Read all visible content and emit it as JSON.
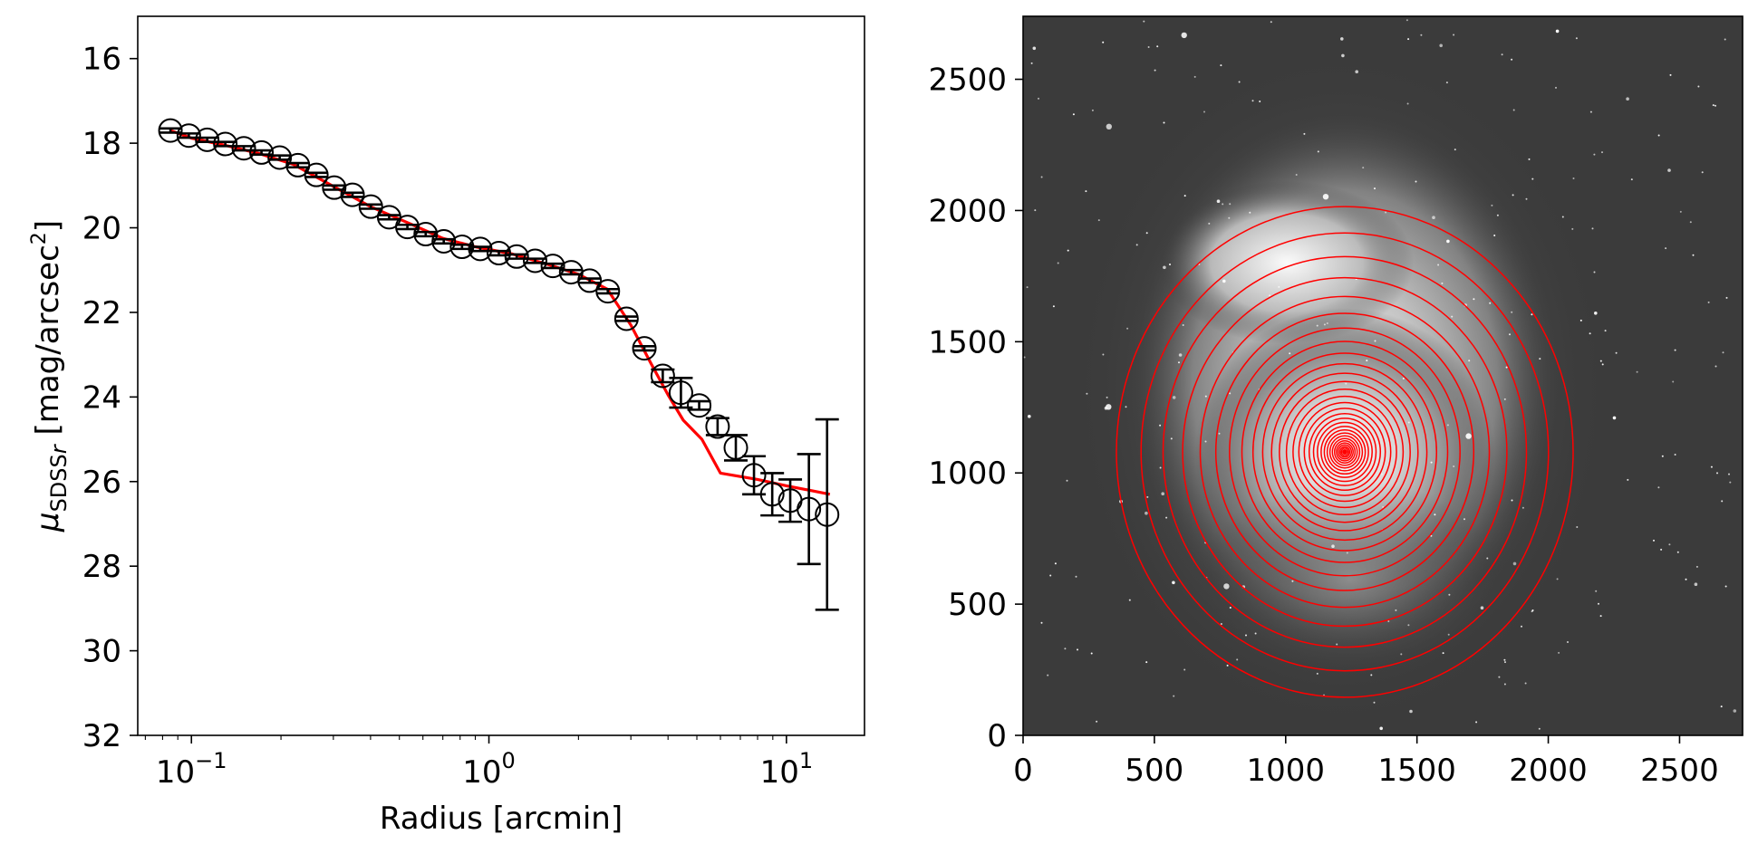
{
  "chart_data": [
    {
      "type": "scatter",
      "xlabel": "Radius [arcmin]",
      "ylabel_main": "μ",
      "ylabel_sub": "SDSS",
      "ylabel_sub_italic": "r",
      "ylabel_unit": " [mag/arcsec",
      "ylabel_unit_sup": "2",
      "ylabel_close": "]",
      "x_scale": "log",
      "xlim": [
        0.066,
        18.3
      ],
      "ylim": [
        32,
        15
      ],
      "y_inverted": true,
      "x_ticks": [
        {
          "value": 0.1,
          "base": "10",
          "exp": "−1"
        },
        {
          "value": 1,
          "base": "10",
          "exp": "0"
        },
        {
          "value": 10,
          "base": "10",
          "exp": "1"
        }
      ],
      "y_ticks": [
        {
          "value": 16,
          "label": "16"
        },
        {
          "value": 18,
          "label": "18"
        },
        {
          "value": 20,
          "label": "20"
        },
        {
          "value": 22,
          "label": "22"
        },
        {
          "value": 24,
          "label": "24"
        },
        {
          "value": 26,
          "label": "26"
        },
        {
          "value": 28,
          "label": "28"
        },
        {
          "value": 30,
          "label": "30"
        },
        {
          "value": 32,
          "label": "32"
        }
      ],
      "series": [
        {
          "marker": "open-circle",
          "color": "#000000",
          "x": [
            0.085,
            0.098,
            0.113,
            0.13,
            0.15,
            0.172,
            0.198,
            0.228,
            0.263,
            0.302,
            0.348,
            0.401,
            0.462,
            0.532,
            0.613,
            0.705,
            0.812,
            0.935,
            1.08,
            1.24,
            1.43,
            1.64,
            1.89,
            2.18,
            2.51,
            2.9,
            3.33,
            3.84,
            4.42,
            5.09,
            5.87,
            6.76,
            7.78,
            8.96,
            10.3,
            11.9,
            13.7
          ],
          "y": [
            17.7,
            17.82,
            17.92,
            18.02,
            18.12,
            18.22,
            18.34,
            18.52,
            18.75,
            19.05,
            19.22,
            19.5,
            19.75,
            19.98,
            20.15,
            20.32,
            20.45,
            20.5,
            20.6,
            20.68,
            20.78,
            20.9,
            21.05,
            21.25,
            21.5,
            22.15,
            22.85,
            23.5,
            23.9,
            24.2,
            24.7,
            25.2,
            25.85,
            26.3,
            26.45,
            26.65,
            26.78
          ],
          "err": [
            0.05,
            0.05,
            0.05,
            0.05,
            0.05,
            0.05,
            0.05,
            0.05,
            0.05,
            0.05,
            0.05,
            0.05,
            0.05,
            0.05,
            0.05,
            0.05,
            0.05,
            0.05,
            0.05,
            0.05,
            0.05,
            0.05,
            0.05,
            0.05,
            0.05,
            0.05,
            0.05,
            0.15,
            0.35,
            0.1,
            0.2,
            0.3,
            0.45,
            0.5,
            0.5,
            1.3,
            2.25
          ]
        },
        {
          "marker": "line",
          "color": "#ff0000",
          "x": [
            0.085,
            0.1,
            0.13,
            0.17,
            0.22,
            0.3,
            0.4,
            0.55,
            0.7,
            0.9,
            1.2,
            1.6,
            2.0,
            2.5,
            3.0,
            3.5,
            4.0,
            4.5,
            5.2,
            6.0,
            8.0,
            10.0,
            14.0
          ],
          "y": [
            17.7,
            17.88,
            18.05,
            18.25,
            18.5,
            19.02,
            19.5,
            19.92,
            20.25,
            20.45,
            20.62,
            20.88,
            21.1,
            21.45,
            22.3,
            23.2,
            23.95,
            24.55,
            25.0,
            25.8,
            25.95,
            26.1,
            26.3
          ]
        }
      ]
    },
    {
      "type": "image",
      "xlim": [
        0,
        2740
      ],
      "ylim": [
        0,
        2740
      ],
      "x_ticks": [
        "0",
        "500",
        "1000",
        "1500",
        "2000",
        "2500"
      ],
      "y_ticks": [
        "0",
        "500",
        "1000",
        "1500",
        "2000",
        "2500"
      ],
      "center": [
        1225,
        1080
      ],
      "ellipse_axis_ratio": 0.93,
      "ellipse_radii": [
        8,
        14,
        20,
        27,
        34,
        42,
        51,
        61,
        72,
        84,
        97,
        112,
        128,
        146,
        166,
        188,
        212,
        239,
        268,
        300,
        336,
        376,
        421,
        472,
        528,
        592,
        664,
        744,
        834,
        935
      ],
      "contour_color": "#ff0000"
    }
  ]
}
